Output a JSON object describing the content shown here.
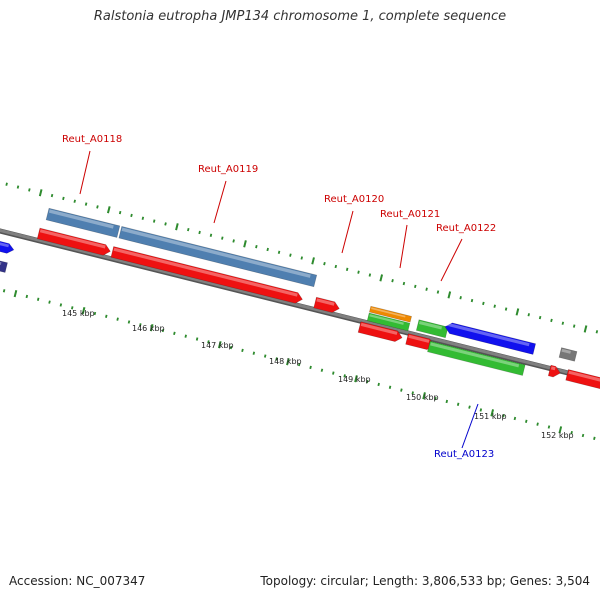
{
  "title": "Ralstonia eutropha JMP134 chromosome 1, complete sequence",
  "footer": {
    "accession": "Accession: NC_007347",
    "summary": "Topology: circular; Length: 3,806,533 bp; Genes: 3,504"
  },
  "colors": {
    "backbone": "#808080",
    "tick": "#2e8b2e",
    "label_red": "#cc0000",
    "label_blue": "#0000cc",
    "steel": "#4f7fb0",
    "red": "#ee1111",
    "blue": "#1111ee",
    "green": "#33bb33",
    "orange": "#ee8800",
    "gray": "#777777",
    "navy": "#333388"
  },
  "kbp_labels": [
    "145 kbp",
    "146 kbp",
    "147 kbp",
    "148 kbp",
    "149 kbp",
    "150 kbp",
    "151 kbp",
    "152 kbp"
  ],
  "gene_labels": [
    {
      "text": "Reut_A0118",
      "color": "red"
    },
    {
      "text": "Reut_A0119",
      "color": "red"
    },
    {
      "text": "Reut_A0120",
      "color": "red"
    },
    {
      "text": "Reut_A0121",
      "color": "red"
    },
    {
      "text": "Reut_A0122",
      "color": "red"
    },
    {
      "text": "Reut_A0123",
      "color": "blue"
    }
  ]
}
